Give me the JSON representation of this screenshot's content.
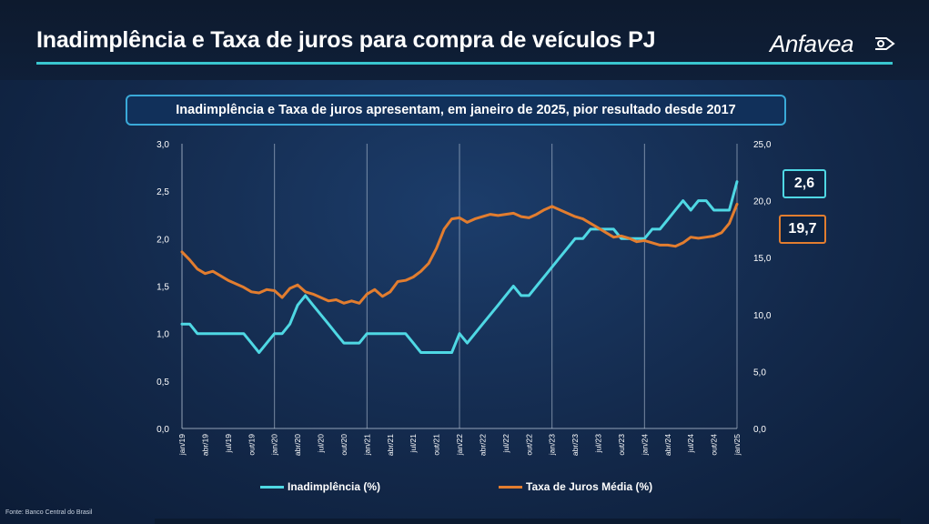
{
  "header": {
    "title": "Inadimplência e Taxa de juros para compra de veículos PJ",
    "brand": "Anfavea",
    "brand_icon": "anfavea-logo-icon"
  },
  "subtitle": "Inadimplência e Taxa de juros apresentam, em janeiro de 2025, pior resultado desde 2017",
  "source": "Fonte: Banco Central do Brasil",
  "callouts": {
    "inadimplencia_last": "2,6",
    "juros_last": "19,7"
  },
  "colors": {
    "inadimplencia": "#4fd8e4",
    "juros": "#e27d2f",
    "accent": "#39c6cf"
  },
  "chart_data": {
    "type": "line",
    "x": [
      "jan/19",
      "fev/19",
      "mar/19",
      "abr/19",
      "mai/19",
      "jun/19",
      "jul/19",
      "ago/19",
      "set/19",
      "out/19",
      "nov/19",
      "dez/19",
      "jan/20",
      "fev/20",
      "mar/20",
      "abr/20",
      "mai/20",
      "jun/20",
      "jul/20",
      "ago/20",
      "set/20",
      "out/20",
      "nov/20",
      "dez/20",
      "jan/21",
      "fev/21",
      "mar/21",
      "abr/21",
      "mai/21",
      "jun/21",
      "jul/21",
      "ago/21",
      "set/21",
      "out/21",
      "nov/21",
      "dez/21",
      "jan/22",
      "fev/22",
      "mar/22",
      "abr/22",
      "mai/22",
      "jun/22",
      "jul/22",
      "ago/22",
      "set/22",
      "out/22",
      "nov/22",
      "dez/22",
      "jan/23",
      "fev/23",
      "mar/23",
      "abr/23",
      "mai/23",
      "jun/23",
      "jul/23",
      "ago/23",
      "set/23",
      "out/23",
      "nov/23",
      "dez/23",
      "jan/24",
      "fev/24",
      "mar/24",
      "abr/24",
      "mai/24",
      "jun/24",
      "jul/24",
      "ago/24",
      "set/24",
      "out/24",
      "nov/24",
      "dez/24",
      "jan/25"
    ],
    "x_tick_labels": [
      "jan/19",
      "abr/19",
      "jul/19",
      "out/19",
      "jan/20",
      "abr/20",
      "jul/20",
      "out/20",
      "jan/21",
      "abr/21",
      "jul/21",
      "out/21",
      "jan/22",
      "abr/22",
      "jul/22",
      "out/22",
      "jan/23",
      "abr/23",
      "jul/23",
      "out/23",
      "jan/24",
      "abr/24",
      "jul/24",
      "out/24",
      "jan/25"
    ],
    "series": [
      {
        "name": "Inadimplência (%)",
        "axis": "left",
        "values": [
          1.1,
          1.1,
          1.0,
          1.0,
          1.0,
          1.0,
          1.0,
          1.0,
          1.0,
          0.9,
          0.8,
          0.9,
          1.0,
          1.0,
          1.1,
          1.3,
          1.4,
          1.3,
          1.2,
          1.1,
          1.0,
          0.9,
          0.9,
          0.9,
          1.0,
          1.0,
          1.0,
          1.0,
          1.0,
          1.0,
          0.9,
          0.8,
          0.8,
          0.8,
          0.8,
          0.8,
          1.0,
          0.9,
          1.0,
          1.1,
          1.2,
          1.3,
          1.4,
          1.5,
          1.4,
          1.4,
          1.5,
          1.6,
          1.7,
          1.8,
          1.9,
          2.0,
          2.0,
          2.1,
          2.1,
          2.1,
          2.1,
          2.0,
          2.0,
          2.0,
          2.0,
          2.1,
          2.1,
          2.2,
          2.3,
          2.4,
          2.3,
          2.4,
          2.4,
          2.3,
          2.3,
          2.3,
          2.6
        ]
      },
      {
        "name": "Taxa de Juros Média (%)",
        "axis": "right",
        "values": [
          15.5,
          14.8,
          14.0,
          13.6,
          13.8,
          13.4,
          13.0,
          12.7,
          12.4,
          12.0,
          11.9,
          12.2,
          12.1,
          11.5,
          12.3,
          12.6,
          12.0,
          11.8,
          11.5,
          11.2,
          11.3,
          11.0,
          11.2,
          11.0,
          11.8,
          12.2,
          11.6,
          12.0,
          12.9,
          13.0,
          13.3,
          13.8,
          14.5,
          15.8,
          17.5,
          18.4,
          18.5,
          18.1,
          18.4,
          18.6,
          18.8,
          18.7,
          18.8,
          18.9,
          18.6,
          18.5,
          18.8,
          19.2,
          19.5,
          19.2,
          18.9,
          18.6,
          18.4,
          18.0,
          17.6,
          17.2,
          16.8,
          16.9,
          16.7,
          16.4,
          16.5,
          16.3,
          16.1,
          16.1,
          16.0,
          16.3,
          16.8,
          16.7,
          16.8,
          16.9,
          17.2,
          18.0,
          19.7
        ]
      }
    ],
    "y_left": {
      "ylim": [
        0,
        3.0
      ],
      "ticks": [
        "0,0",
        "0,5",
        "1,0",
        "1,5",
        "2,0",
        "2,5",
        "3,0"
      ]
    },
    "y_right": {
      "ylim": [
        0,
        25.0
      ],
      "ticks": [
        "0,0",
        "5,0",
        "10,0",
        "15,0",
        "20,0",
        "25,0"
      ]
    },
    "vertical_gridlines_at": [
      "jan/20",
      "jan/21",
      "jan/22",
      "jan/23",
      "jan/24",
      "jan/25"
    ],
    "legend_position": "bottom"
  }
}
